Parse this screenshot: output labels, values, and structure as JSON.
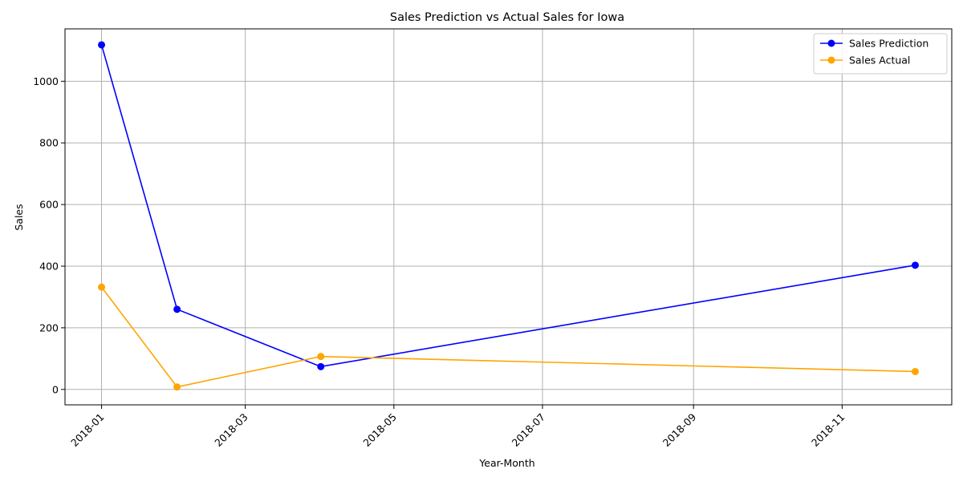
{
  "chart_data": {
    "type": "line",
    "title": "Sales Prediction vs Actual Sales for Iowa",
    "xlabel": "Year-Month",
    "ylabel": "Sales",
    "x_axis_type": "date",
    "xlim": [
      "2017-12-17",
      "2018-12-16"
    ],
    "ylim": [
      -50,
      1170
    ],
    "x_ticks": [
      "2018-01",
      "2018-03",
      "2018-05",
      "2018-07",
      "2018-09",
      "2018-11"
    ],
    "y_ticks": [
      0,
      200,
      400,
      600,
      800,
      1000
    ],
    "grid": true,
    "legend_position": "top-right",
    "series": [
      {
        "name": "Sales Prediction",
        "color": "#0000ff",
        "marker": "circle",
        "x": [
          "2018-01-01",
          "2018-02-01",
          "2018-04-01",
          "2018-12-01"
        ],
        "y": [
          1118,
          260,
          74,
          403
        ]
      },
      {
        "name": "Sales Actual",
        "color": "#ffa500",
        "marker": "circle",
        "x": [
          "2018-01-01",
          "2018-02-01",
          "2018-04-01",
          "2018-12-01"
        ],
        "y": [
          332,
          8,
          107,
          58
        ]
      }
    ]
  }
}
